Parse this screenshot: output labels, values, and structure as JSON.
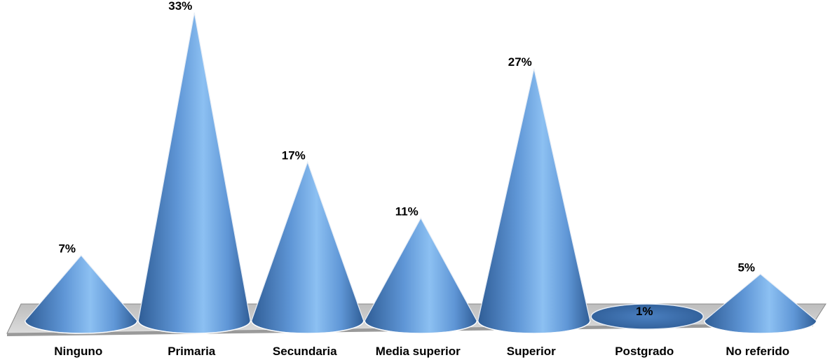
{
  "chart_data": {
    "type": "bar",
    "style": "3d-cone",
    "categories": [
      "Ninguno",
      "Primaria",
      "Secundaria",
      "Media superior",
      "Superior",
      "Postgrado",
      "No referido"
    ],
    "values": [
      7,
      33,
      17,
      11,
      27,
      1,
      5
    ],
    "data_labels": [
      "7%",
      "33%",
      "17%",
      "11%",
      "27%",
      "1%",
      "5%"
    ],
    "unit": "%",
    "ylim": [
      0,
      33
    ],
    "grid": false,
    "legend": "none",
    "colors": {
      "cone_dark": "#2f5d96",
      "cone_mid": "#5f96d6",
      "cone_light": "#8cc0f2",
      "floor_top": "#c8c8c8",
      "floor_edge": "#8a8a8a"
    }
  }
}
